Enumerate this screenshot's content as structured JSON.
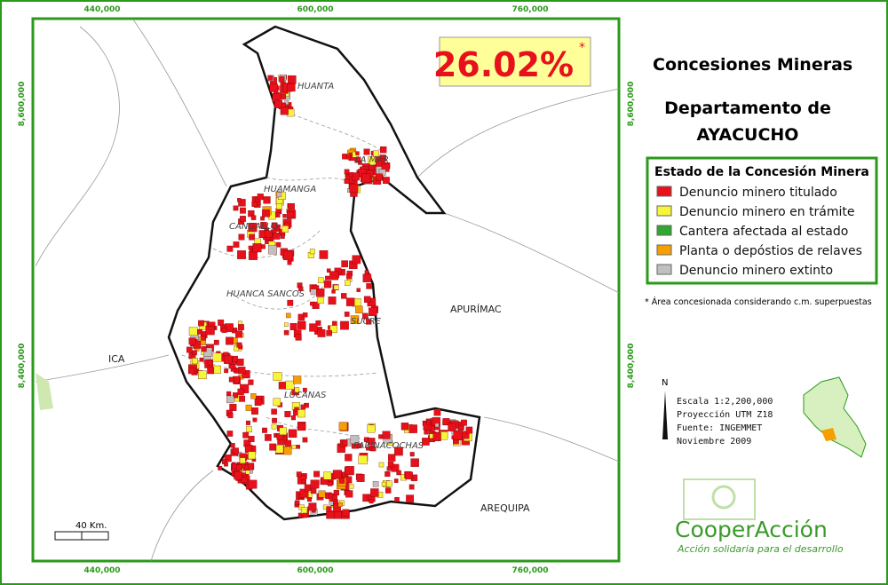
{
  "coverage": {
    "value": "26.02%",
    "mark": "*"
  },
  "title": {
    "line1": "Concesiones Mineras",
    "line2": "Departamento de",
    "line3": "AYACUCHO"
  },
  "coordinates": {
    "x": [
      "440,000",
      "600,000",
      "760,000"
    ],
    "y": [
      "8,600,000",
      "8,400,000"
    ]
  },
  "legend": {
    "title": "Estado de la Concesión Minera",
    "items": [
      {
        "label": "Denuncio minero titulado",
        "color": "#e8101a"
      },
      {
        "label": "Denuncio minero en trámite",
        "color": "#f5f53a"
      },
      {
        "label": "Cantera afectada al estado",
        "color": "#2ea82e"
      },
      {
        "label": "Planta o depóstios de relaves",
        "color": "#f5a000"
      },
      {
        "label": "Denuncio minero extinto",
        "color": "#c0c0c0"
      }
    ]
  },
  "note": "* Área concesionada considerando c.m. superpuestas",
  "places": {
    "provinces": [
      "HUANTA",
      "LA MAR",
      "HUAMANGA",
      "CANGALLO",
      "HUANCA SANCOS",
      "SUCRE",
      "LUCANAS",
      "PARINACOCHAS"
    ],
    "regions": [
      "APURÍMAC",
      "ICA",
      "AREQUIPA"
    ]
  },
  "scale_bar": "40 Km.",
  "north": "N",
  "map_info": [
    "Escala 1:2,200,000",
    "Proyección UTM Z18",
    "Fuente: INGEMMET",
    "Noviembre 2009"
  ],
  "logo": {
    "name": "CooperAcción",
    "tagline": "Acción solidaria para el desarrollo"
  }
}
